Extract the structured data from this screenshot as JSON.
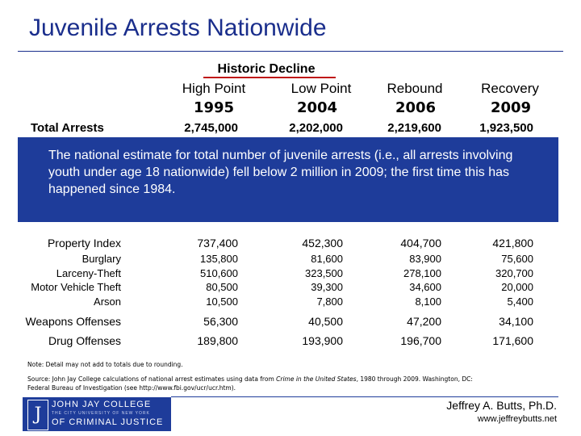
{
  "title": "Juvenile Arrests Nationwide",
  "header": {
    "group_label": "Historic Decline",
    "columns": [
      {
        "label": "High Point",
        "year": "1995"
      },
      {
        "label": "Low Point",
        "year": "2004"
      },
      {
        "label": "Rebound",
        "year": "2006"
      },
      {
        "label": "Recovery",
        "year": "2009"
      }
    ]
  },
  "total": {
    "label": "Total Arrests",
    "values": [
      "2,745,000",
      "2,202,000",
      "2,219,600",
      "1,923,500"
    ]
  },
  "banner_text": "The national estimate for total number of juvenile arrests (i.e., all arrests involving youth under age 18 nationwide) fell below 2 million in 2009; the first time this has happened since 1984.",
  "property": {
    "label": "Property Index",
    "values": [
      "737,400",
      "452,300",
      "404,700",
      "421,800"
    ],
    "sub": [
      {
        "label": "Burglary",
        "values": [
          "135,800",
          "81,600",
          "83,900",
          "75,600"
        ]
      },
      {
        "label": "Larceny-Theft",
        "values": [
          "510,600",
          "323,500",
          "278,100",
          "320,700"
        ]
      },
      {
        "label": "Motor Vehicle Theft",
        "values": [
          "80,500",
          "39,300",
          "34,600",
          "20,000"
        ]
      },
      {
        "label": "Arson",
        "values": [
          "10,500",
          "7,800",
          "8,100",
          "5,400"
        ]
      }
    ]
  },
  "weapons": {
    "label": "Weapons Offenses",
    "values": [
      "56,300",
      "40,500",
      "47,200",
      "34,100"
    ]
  },
  "drugs": {
    "label": "Drug Offenses",
    "values": [
      "189,800",
      "193,900",
      "196,700",
      "171,600"
    ]
  },
  "note": "Note: Detail may not add to totals due to rounding.",
  "source": {
    "prefix": "Source: John Jay College calculations of national arrest estimates using data from ",
    "italic": "Crime in the United States",
    "suffix": ", 1980 through 2009. Washington, DC: Federal Bureau of Investigation (see http://www.fbi.gov/ucr/ucr.htm)."
  },
  "logo": {
    "mark": "J",
    "line1": "JOHN JAY COLLEGE",
    "line2": "THE CITY UNIVERSITY OF NEW YORK",
    "line3": "OF CRIMINAL JUSTICE"
  },
  "author": "Jeffrey A. Butts, Ph.D.",
  "website": "www.jeffreybutts.net",
  "colors": {
    "accent": "#1e3c9a",
    "title": "#1a2e8c",
    "rule": "#c01818"
  }
}
